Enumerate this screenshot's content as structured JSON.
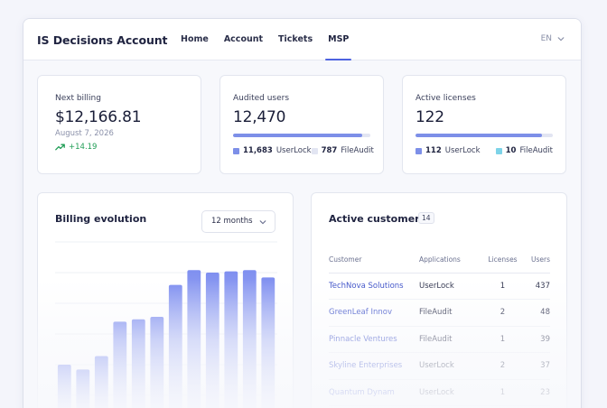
{
  "app": {
    "title": "IS Decisions Account"
  },
  "nav": {
    "items": [
      {
        "label": "Home",
        "active": false
      },
      {
        "label": "Account",
        "active": false
      },
      {
        "label": "Tickets",
        "active": false
      },
      {
        "label": "MSP",
        "active": true
      }
    ],
    "language": "EN"
  },
  "stats": {
    "billing": {
      "label": "Next billing",
      "value": "$12,166.81",
      "date": "August 7, 2026",
      "delta": "+14.19",
      "delta_color": "#1f9d55"
    },
    "audited": {
      "label": "Audited users",
      "value": "12,470",
      "fill_fraction": 0.94,
      "legend": [
        {
          "count": "11,683",
          "name": "UserLock",
          "color": "#7d8fe8"
        },
        {
          "count": "787",
          "name": "FileAudit",
          "color": "#e2e5f2"
        }
      ]
    },
    "licenses": {
      "label": "Active licenses",
      "value": "122",
      "fill_fraction": 0.92,
      "legend": [
        {
          "count": "112",
          "name": "UserLock",
          "color": "#7d8fe8"
        },
        {
          "count": "10",
          "name": "FileAudit",
          "color": "#7dd3e8"
        }
      ]
    }
  },
  "billing_chart": {
    "title": "Billing evolution",
    "range_label": "12 months",
    "chart_data": {
      "type": "bar",
      "values": [
        50,
        46,
        57,
        85,
        87,
        89,
        115,
        127,
        125,
        126,
        127,
        121
      ],
      "ylim": [
        0,
        150
      ],
      "grid": true,
      "color": "#7f8ff0"
    }
  },
  "customers": {
    "title": "Active customers",
    "count": "14",
    "columns": [
      "Customer",
      "Applications",
      "Licenses",
      "Users"
    ],
    "rows": [
      {
        "name": "TechNova Solutions",
        "app": "UserLock",
        "licenses": "1",
        "users": "437"
      },
      {
        "name": "GreenLeaf Innov",
        "app": "FileAudit",
        "licenses": "2",
        "users": "48"
      },
      {
        "name": "Pinnacle Ventures",
        "app": "FileAudit",
        "licenses": "1",
        "users": "39"
      },
      {
        "name": "Skyline Enterprises",
        "app": "UserLock",
        "licenses": "2",
        "users": "37"
      },
      {
        "name": "Quantum Dynam",
        "app": "UserLock",
        "licenses": "1",
        "users": "23"
      }
    ]
  }
}
